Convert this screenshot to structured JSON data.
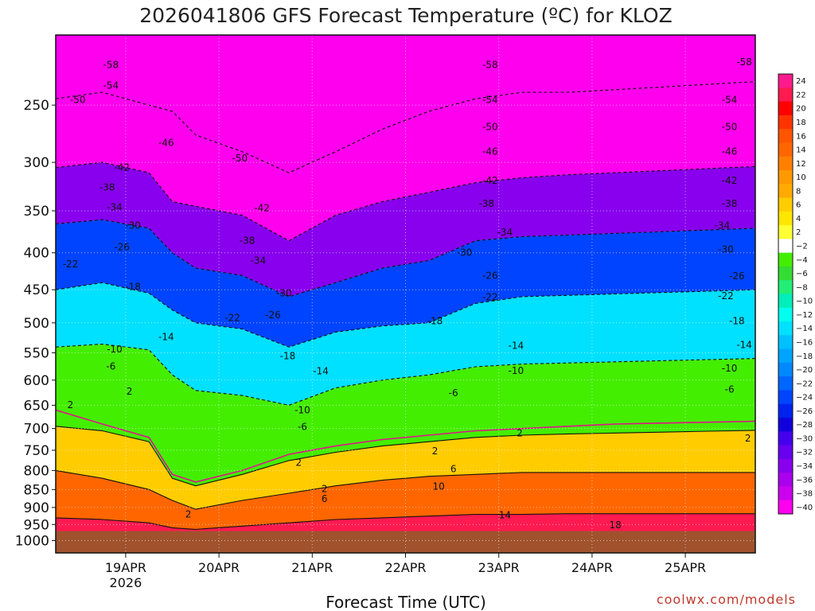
{
  "chart_data": {
    "type": "heatmap",
    "title": "2026041806 GFS Forecast Temperature (ºC) for KLOZ",
    "xlabel": "Forecast Time (UTC)",
    "credit": "coolwx.com/models",
    "x_ticks": [
      {
        "label": "19APR",
        "sublabel": "2026",
        "t": 18
      },
      {
        "label": "20APR",
        "sublabel": "",
        "t": 42
      },
      {
        "label": "21APR",
        "sublabel": "",
        "t": 66
      },
      {
        "label": "22APR",
        "sublabel": "",
        "t": 90
      },
      {
        "label": "23APR",
        "sublabel": "",
        "t": 114
      },
      {
        "label": "24APR",
        "sublabel": "",
        "t": 138
      },
      {
        "label": "25APR",
        "sublabel": "",
        "t": 162
      }
    ],
    "xlim_hours": [
      0,
      180
    ],
    "y_ticks": [
      250,
      300,
      350,
      400,
      450,
      500,
      550,
      600,
      650,
      700,
      750,
      800,
      850,
      900,
      950,
      1000
    ],
    "ylim_hpa": [
      200,
      1040
    ],
    "y_scale": "log",
    "surface_pressure_hpa": 970,
    "grid": "dotted",
    "colorbar": {
      "levels": [
        24,
        22,
        20,
        18,
        16,
        14,
        12,
        10,
        8,
        6,
        4,
        2,
        -2,
        -4,
        -6,
        -8,
        -10,
        -12,
        -14,
        -16,
        -18,
        -20,
        -22,
        -24,
        -26,
        -28,
        -30,
        -32,
        -34,
        -36,
        -38,
        -40
      ],
      "colors": [
        "#ff1a8c",
        "#ff1a50",
        "#ff0000",
        "#ff3300",
        "#ff5500",
        "#ff6600",
        "#ff8000",
        "#ff9900",
        "#ffaa00",
        "#ffcc00",
        "#ffe600",
        "#ffff33",
        "#ffffff",
        "#44ee00",
        "#33dd33",
        "#22ee77",
        "#00eebb",
        "#00ffee",
        "#00e0ff",
        "#00c0ff",
        "#00a4ff",
        "#0088ff",
        "#0066ff",
        "#0044ff",
        "#0022ee",
        "#1100dd",
        "#4400ee",
        "#6600ee",
        "#8800ee",
        "#aa00ee",
        "#cc00ee",
        "#ff00ee"
      ]
    },
    "x_hours": [
      0,
      12,
      24,
      30,
      36,
      48,
      60,
      72,
      84,
      96,
      108,
      120,
      132,
      144,
      156,
      168,
      180
    ],
    "freezing_level_hpa": [
      660,
      690,
      720,
      810,
      830,
      800,
      760,
      740,
      725,
      715,
      705,
      700,
      695,
      690,
      688,
      686,
      684
    ],
    "series": [
      {
        "name": "-50",
        "pressure_hpa": [
          245,
          240,
          250,
          255,
          275,
          290,
          310,
          290,
          270,
          255,
          245,
          240,
          240,
          238,
          236,
          234,
          232
        ]
      },
      {
        "name": "-40",
        "pressure_hpa": [
          305,
          300,
          310,
          340,
          345,
          355,
          385,
          355,
          340,
          330,
          320,
          315,
          312,
          310,
          308,
          306,
          304
        ]
      },
      {
        "name": "-30",
        "pressure_hpa": [
          365,
          360,
          370,
          400,
          420,
          430,
          460,
          440,
          420,
          410,
          385,
          380,
          378,
          376,
          374,
          372,
          370
        ]
      },
      {
        "name": "-20",
        "pressure_hpa": [
          450,
          440,
          455,
          480,
          500,
          510,
          540,
          515,
          505,
          500,
          470,
          460,
          458,
          456,
          454,
          452,
          450
        ]
      },
      {
        "name": "-10",
        "pressure_hpa": [
          540,
          535,
          545,
          590,
          620,
          630,
          650,
          615,
          600,
          590,
          575,
          570,
          568,
          566,
          564,
          562,
          560
        ]
      },
      {
        "name": "2",
        "pressure_hpa": [
          695,
          705,
          730,
          820,
          840,
          810,
          775,
          755,
          740,
          730,
          720,
          715,
          712,
          710,
          708,
          706,
          704
        ]
      },
      {
        "name": "10",
        "pressure_hpa": [
          800,
          820,
          850,
          880,
          905,
          880,
          860,
          840,
          825,
          815,
          810,
          805,
          805,
          805,
          805,
          805,
          805
        ]
      },
      {
        "name": "18",
        "pressure_hpa": [
          930,
          935,
          945,
          960,
          965,
          955,
          945,
          935,
          930,
          925,
          920,
          920,
          918,
          918,
          918,
          918,
          918
        ]
      }
    ],
    "contour_labels": [
      {
        "text": "-58",
        "t": 30,
        "p": 220
      },
      {
        "text": "-54",
        "t": 30,
        "p": 235
      },
      {
        "text": "-50",
        "t": 12,
        "p": 246
      },
      {
        "text": "-46",
        "t": 60,
        "p": 282
      },
      {
        "text": "-42",
        "t": 36,
        "p": 305
      },
      {
        "text": "-38",
        "t": 28,
        "p": 325
      },
      {
        "text": "-34",
        "t": 32,
        "p": 346
      },
      {
        "text": "-30",
        "t": 42,
        "p": 367
      },
      {
        "text": "-26",
        "t": 36,
        "p": 393
      },
      {
        "text": "-22",
        "t": 8,
        "p": 415
      },
      {
        "text": "-18",
        "t": 42,
        "p": 446
      },
      {
        "text": "-14",
        "t": 60,
        "p": 523
      },
      {
        "text": "-10",
        "t": 32,
        "p": 544
      },
      {
        "text": "-6",
        "t": 30,
        "p": 574
      },
      {
        "text": "2",
        "t": 40,
        "p": 622
      },
      {
        "text": "2",
        "t": 8,
        "p": 649
      },
      {
        "text": "-50",
        "t": 100,
        "p": 296
      },
      {
        "text": "-42",
        "t": 112,
        "p": 347
      },
      {
        "text": "-38",
        "t": 104,
        "p": 385
      },
      {
        "text": "-34",
        "t": 110,
        "p": 410
      },
      {
        "text": "-30",
        "t": 124,
        "p": 455
      },
      {
        "text": "-22",
        "t": 96,
        "p": 492
      },
      {
        "text": "-26",
        "t": 118,
        "p": 488
      },
      {
        "text": "-18",
        "t": 126,
        "p": 556
      },
      {
        "text": "-14",
        "t": 144,
        "p": 583
      },
      {
        "text": "-10",
        "t": 134,
        "p": 660
      },
      {
        "text": "-6",
        "t": 134,
        "p": 696
      },
      {
        "text": "2",
        "t": 132,
        "p": 780
      },
      {
        "text": "2",
        "t": 146,
        "p": 848
      },
      {
        "text": "6",
        "t": 146,
        "p": 875
      },
      {
        "text": "2",
        "t": 72,
        "p": 920
      },
      {
        "text": "-58",
        "t": 236,
        "p": 220
      },
      {
        "text": "-54",
        "t": 236,
        "p": 246
      },
      {
        "text": "-50",
        "t": 236,
        "p": 268
      },
      {
        "text": "-46",
        "t": 236,
        "p": 290
      },
      {
        "text": "-42",
        "t": 236,
        "p": 318
      },
      {
        "text": "-38",
        "t": 234,
        "p": 342
      },
      {
        "text": "-34",
        "t": 244,
        "p": 375
      },
      {
        "text": "-30",
        "t": 222,
        "p": 400
      },
      {
        "text": "-26",
        "t": 236,
        "p": 430
      },
      {
        "text": "-22",
        "t": 236,
        "p": 461
      },
      {
        "text": "-18",
        "t": 206,
        "p": 497
      },
      {
        "text": "-14",
        "t": 250,
        "p": 538
      },
      {
        "text": "-10",
        "t": 250,
        "p": 582
      },
      {
        "text": "-6",
        "t": 216,
        "p": 625
      },
      {
        "text": "2",
        "t": 252,
        "p": 710
      },
      {
        "text": "2",
        "t": 206,
        "p": 752
      },
      {
        "text": "6",
        "t": 216,
        "p": 796
      },
      {
        "text": "10",
        "t": 208,
        "p": 842
      },
      {
        "text": "14",
        "t": 244,
        "p": 922
      },
      {
        "text": "18",
        "t": 304,
        "p": 952
      },
      {
        "text": "-58",
        "t": 374,
        "p": 218
      },
      {
        "text": "-54",
        "t": 366,
        "p": 246
      },
      {
        "text": "-50",
        "t": 366,
        "p": 268
      },
      {
        "text": "-46",
        "t": 366,
        "p": 290
      },
      {
        "text": "-42",
        "t": 366,
        "p": 318
      },
      {
        "text": "-38",
        "t": 366,
        "p": 342
      },
      {
        "text": "-34",
        "t": 362,
        "p": 367
      },
      {
        "text": "-30",
        "t": 364,
        "p": 396
      },
      {
        "text": "-26",
        "t": 370,
        "p": 431
      },
      {
        "text": "-22",
        "t": 364,
        "p": 459
      },
      {
        "text": "-18",
        "t": 370,
        "p": 497
      },
      {
        "text": "-14",
        "t": 374,
        "p": 536
      },
      {
        "text": "-10",
        "t": 366,
        "p": 578
      },
      {
        "text": "-6",
        "t": 366,
        "p": 618
      },
      {
        "text": "2",
        "t": 376,
        "p": 722
      }
    ]
  }
}
